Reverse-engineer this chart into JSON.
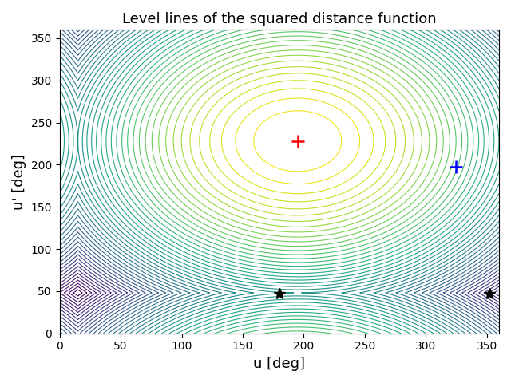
{
  "title": "Level lines of the squared distance function",
  "xlabel": "u [deg]",
  "ylabel": "u' [deg]",
  "xlim": [
    0,
    360
  ],
  "ylim": [
    0,
    360
  ],
  "xticks": [
    0,
    50,
    100,
    150,
    200,
    250,
    300,
    350
  ],
  "yticks": [
    0,
    50,
    100,
    150,
    200,
    250,
    300,
    350
  ],
  "red_marker": [
    195,
    228
  ],
  "blue_marker": [
    325,
    198
  ],
  "black_star1": [
    180,
    47
  ],
  "black_star2": [
    352,
    47
  ],
  "n_levels": 50,
  "colormap": "viridis_r",
  "grid_points": 600,
  "u_ref": 195.0,
  "uprime_ref": 228.0,
  "title_fontsize": 13,
  "axis_label_fontsize": 13,
  "linewidth": 0.8
}
